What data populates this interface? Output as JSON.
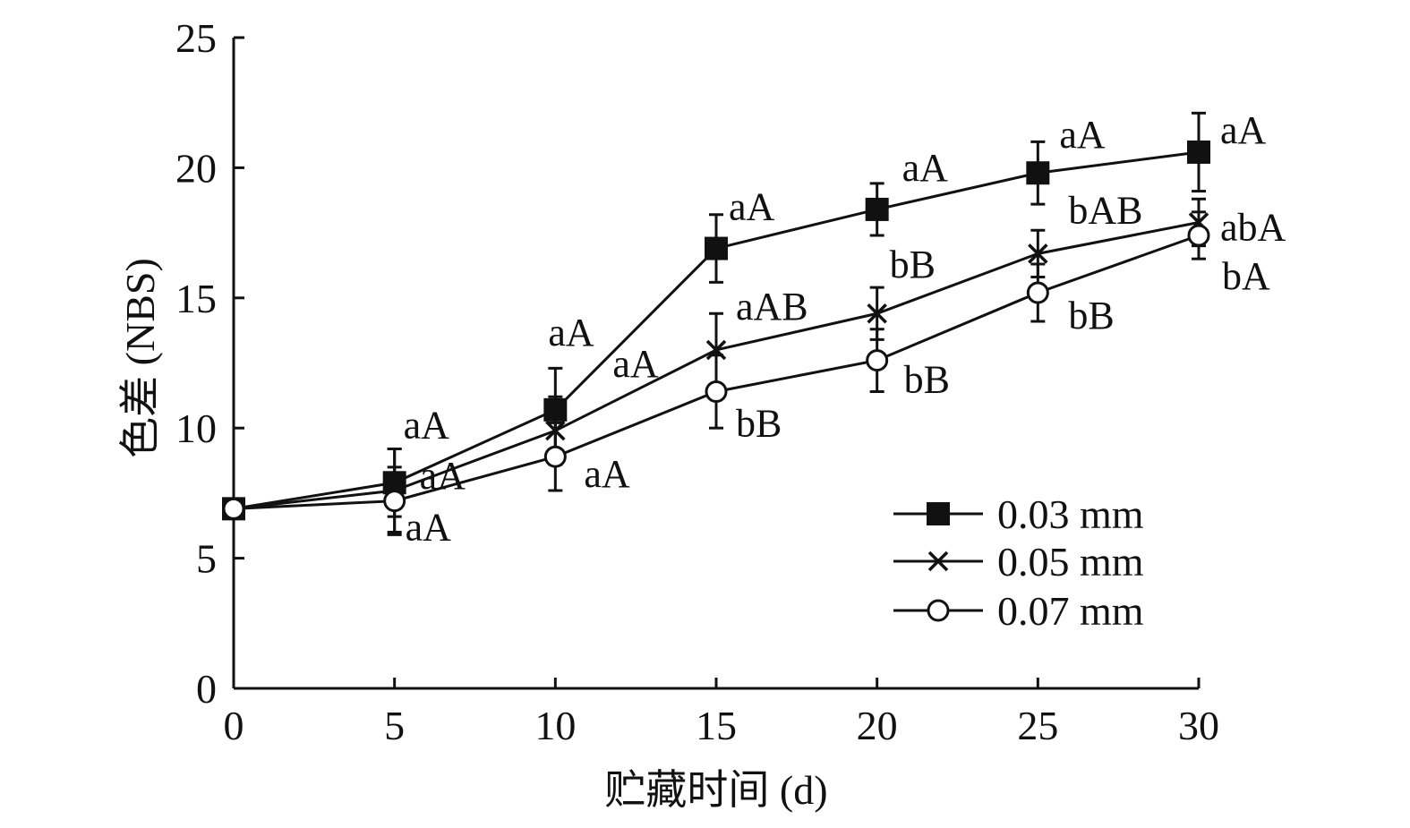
{
  "chart_data": {
    "type": "line",
    "title": "",
    "xlabel": "贮藏时间 (d)",
    "ylabel": "色差 (NBS)",
    "x": [
      0,
      5,
      10,
      15,
      20,
      25,
      30
    ],
    "x_ticks": [
      "0",
      "5",
      "10",
      "15",
      "20",
      "25",
      "30"
    ],
    "y_ticks": [
      "0",
      "5",
      "10",
      "15",
      "20",
      "25"
    ],
    "xlim": [
      0,
      30
    ],
    "ylim": [
      0,
      25
    ],
    "grid": false,
    "legend_position": "bottom-right",
    "series": [
      {
        "name": "0.03 mm",
        "marker": "filled-square",
        "values": [
          6.9,
          7.9,
          10.7,
          16.9,
          18.4,
          19.8,
          20.6
        ],
        "errors": [
          0.2,
          1.3,
          1.6,
          1.3,
          1.0,
          1.2,
          1.5
        ],
        "labels": [
          "",
          "aA",
          "aA",
          "aA",
          "aA",
          "aA",
          "aA"
        ]
      },
      {
        "name": "0.05 mm",
        "marker": "x-cross",
        "values": [
          6.9,
          7.6,
          9.9,
          13.0,
          14.4,
          16.7,
          17.9
        ],
        "errors": [
          0.2,
          1.6,
          1.3,
          1.4,
          1.0,
          0.9,
          0.9
        ],
        "labels": [
          "",
          "aA",
          "aA",
          "aAB",
          "bB",
          "bAB",
          "abA"
        ]
      },
      {
        "name": "0.07 mm",
        "marker": "open-circle",
        "values": [
          6.9,
          7.2,
          8.9,
          11.4,
          12.6,
          15.2,
          17.4
        ],
        "errors": [
          0.2,
          1.3,
          1.3,
          1.4,
          1.2,
          1.1,
          0.9
        ],
        "labels": [
          "",
          "aA",
          "aA",
          "bB",
          "bB",
          "bB",
          "bA"
        ]
      }
    ]
  }
}
